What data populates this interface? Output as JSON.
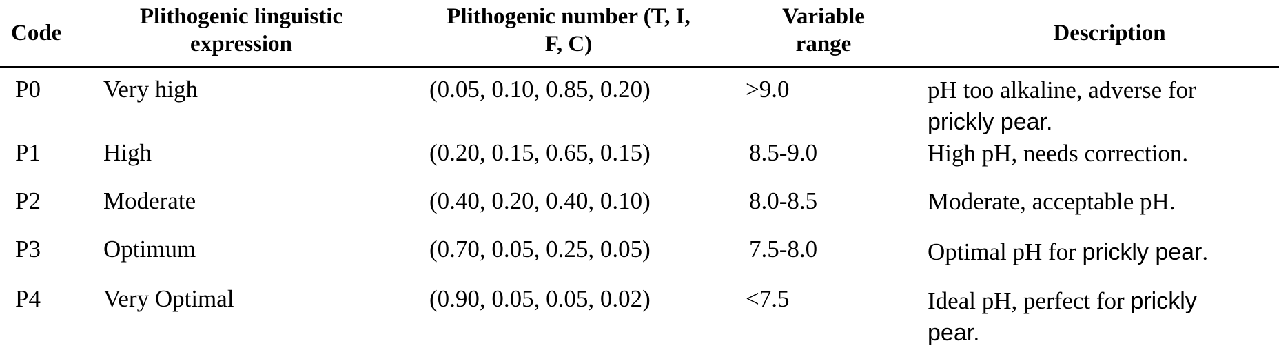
{
  "table": {
    "headers": {
      "code": "Code",
      "expression_line1": "Plithogenic linguistic",
      "expression_line2": "expression",
      "number_line1": "Plithogenic number (T, I,",
      "number_line2": "F, C)",
      "range_line1": "Variable",
      "range_line2": "range",
      "description": "Description"
    },
    "rows": [
      {
        "code": "P0",
        "expression": "Very high",
        "number": "(0.05, 0.10, 0.85, 0.20)",
        "range": ">9.0",
        "desc_serif": "pH too alkaline, adverse for ",
        "desc_sans": "prickly pear.",
        "desc_tail": ""
      },
      {
        "code": "P1",
        "expression": "High",
        "number": "(0.20, 0.15, 0.65, 0.15)",
        "range": "8.5-9.0",
        "desc_serif": "High pH, needs correction.",
        "desc_sans": "",
        "desc_tail": ""
      },
      {
        "code": "P2",
        "expression": "Moderate",
        "number": "(0.40, 0.20, 0.40, 0.10)",
        "range": "8.0-8.5",
        "desc_serif": "Moderate, acceptable pH.",
        "desc_sans": "",
        "desc_tail": ""
      },
      {
        "code": "P3",
        "expression": "Optimum",
        "number": "(0.70, 0.05, 0.25, 0.05)",
        "range": "7.5-8.0",
        "desc_serif": "Optimal pH for ",
        "desc_sans": "prickly pear",
        "desc_tail": "."
      },
      {
        "code": "P4",
        "expression": "Very Optimal",
        "number": "(0.90, 0.05, 0.05, 0.02)",
        "range": "<7.5",
        "desc_serif": "Ideal pH, perfect for ",
        "desc_sans": "prickly pear.",
        "desc_tail": ""
      }
    ]
  }
}
